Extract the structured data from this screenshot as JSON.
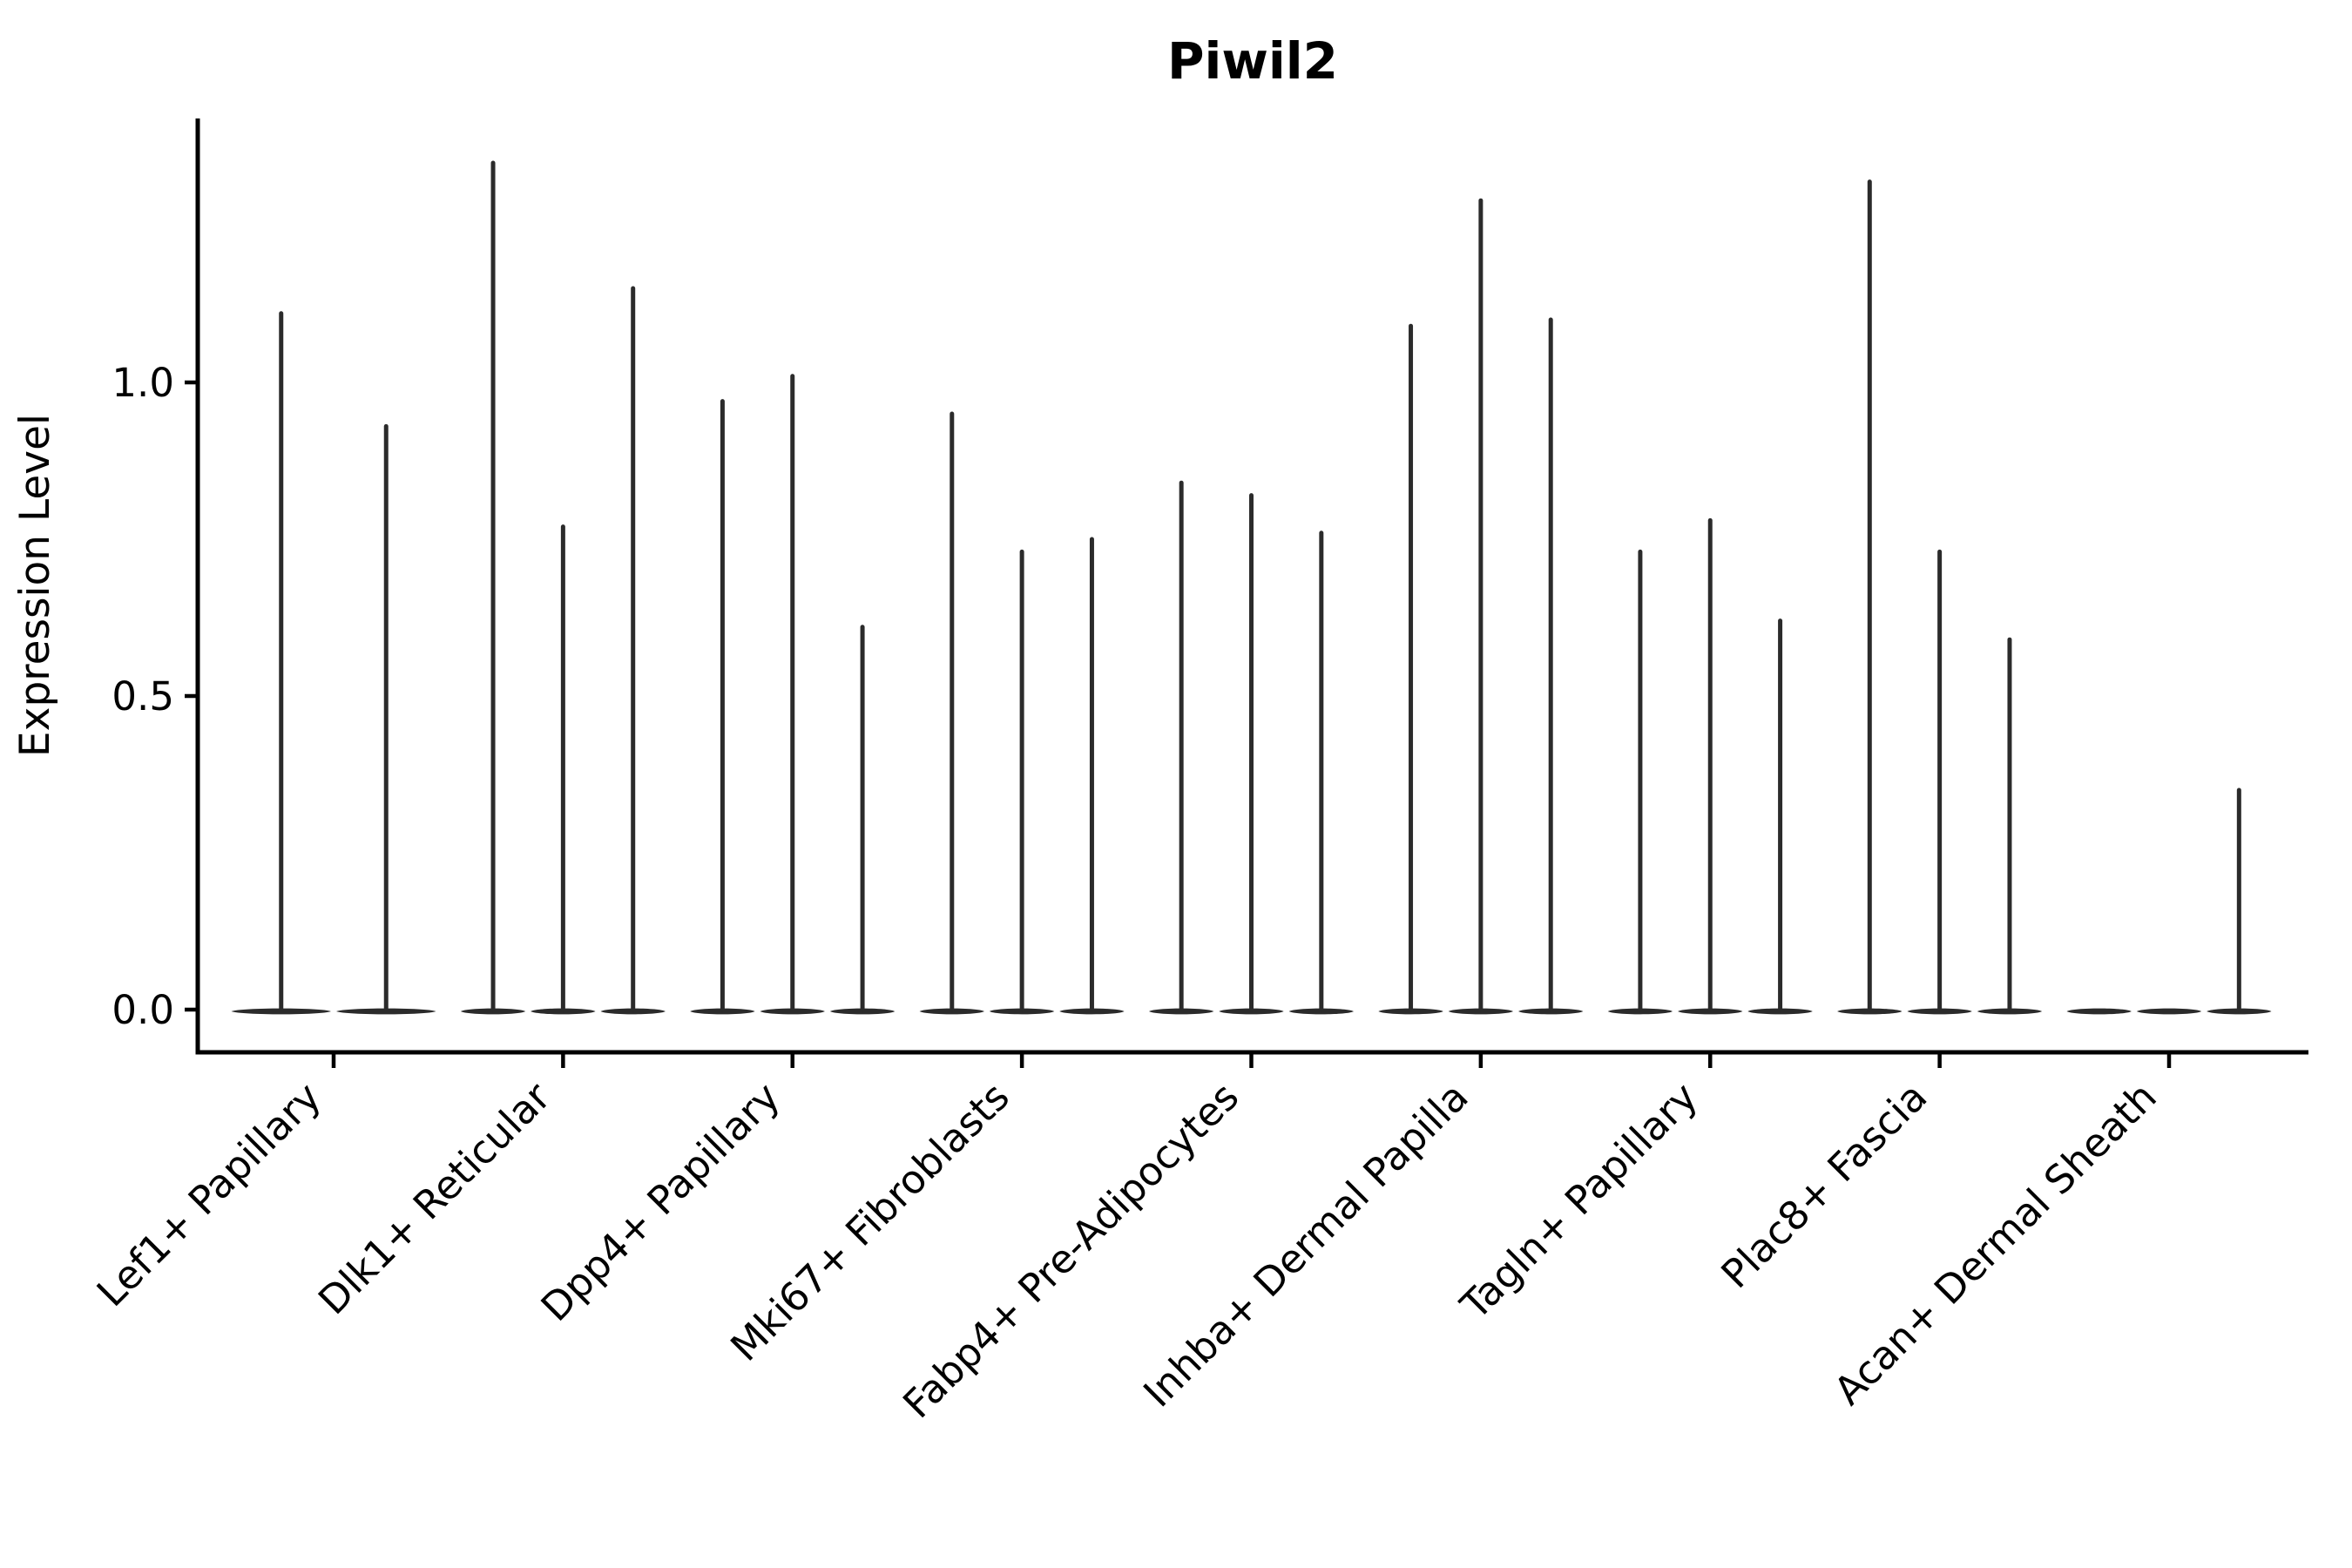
{
  "chart_data": {
    "type": "violin",
    "title": "Piwil2",
    "xlabel": "",
    "ylabel": "Expression Level",
    "yticks": [
      0.0,
      0.5,
      1.0
    ],
    "ytick_labels": [
      "0.0",
      "0.5",
      "1.0"
    ],
    "ylim": [
      -0.07,
      1.42
    ],
    "grid": false,
    "legend": "none",
    "description": "Zero-inflated expression violin plot: each cluster shows 2-3 thin sample violins; flat mass at 0 with a narrow spike up to the max expression value.",
    "categories": [
      "Lef1+ Papillary",
      "Dlk1+ Reticular",
      "Dpp4+ Papillary",
      "Mki67+ Fibroblasts",
      "Fabp4+ Pre-Adipocytes",
      "Inhba+ Dermal Papilla",
      "Tagln+ Papillary",
      "Plac8+ Fascia",
      "Acan+ Dermal Sheath"
    ],
    "groups": [
      {
        "label": "Lef1+ Papillary",
        "violin_max_values": [
          1.11,
          0.93
        ]
      },
      {
        "label": "Dlk1+ Reticular",
        "violin_max_values": [
          1.35,
          0.77,
          1.15
        ]
      },
      {
        "label": "Dpp4+ Papillary",
        "violin_max_values": [
          0.97,
          1.01,
          0.61
        ]
      },
      {
        "label": "Mki67+ Fibroblasts",
        "violin_max_values": [
          0.95,
          0.73,
          0.75
        ]
      },
      {
        "label": "Fabp4+ Pre-Adipocytes",
        "violin_max_values": [
          0.84,
          0.82,
          0.76
        ]
      },
      {
        "label": "Inhba+ Dermal Papilla",
        "violin_max_values": [
          1.09,
          1.29,
          1.1
        ]
      },
      {
        "label": "Tagln+ Papillary",
        "violin_max_values": [
          0.73,
          0.78,
          0.62
        ]
      },
      {
        "label": "Plac8+ Fascia",
        "violin_max_values": [
          1.32,
          0.73,
          0.59
        ]
      },
      {
        "label": "Acan+ Dermal Sheath",
        "violin_max_values": [
          0.0,
          0.0,
          0.35
        ]
      }
    ],
    "colors": {
      "violin": "#2b2b2b",
      "axis": "#000000",
      "text": "#000000",
      "background": "#ffffff"
    }
  }
}
